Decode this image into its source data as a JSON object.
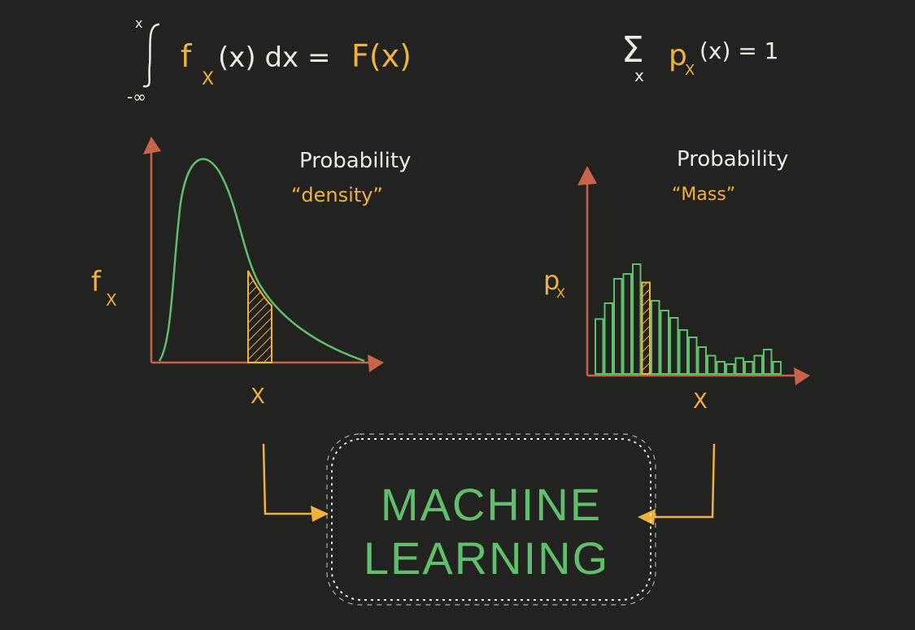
{
  "colors": {
    "background": "#222220",
    "axis": "#c8644a",
    "curve": "#5fbf6a",
    "highlight": "#f0b23c",
    "text_white": "#ecece4",
    "ml_text": "#5fbf6a"
  },
  "formulas": {
    "integral_upper": "x",
    "integral_lower": "-∞",
    "integral_integrand": "f",
    "integral_sub": "X",
    "integral_rest": "(x) dx =",
    "integral_result": "F(x)",
    "sum_index": "x",
    "sum_body": "p",
    "sum_sub": "X",
    "sum_rest": "(x) = 1"
  },
  "density_panel": {
    "title": "Probability",
    "subtitle": "“density”",
    "y_label": "f",
    "y_label_sub": "X",
    "x_label": "X"
  },
  "mass_panel": {
    "title": "Probability",
    "subtitle": "“Mass”",
    "y_label": "p",
    "y_label_sub": "X",
    "x_label": "X",
    "bars": [
      0.45,
      0.58,
      0.78,
      0.82,
      0.9,
      0.75,
      0.6,
      0.52,
      0.46,
      0.36,
      0.3,
      0.22,
      0.15,
      0.1,
      0.08,
      0.13,
      0.1,
      0.15,
      0.2,
      0.1
    ],
    "highlight_bar_index": 5
  },
  "ml_box": {
    "line1": "MACHINE",
    "line2": "LEARNING"
  }
}
